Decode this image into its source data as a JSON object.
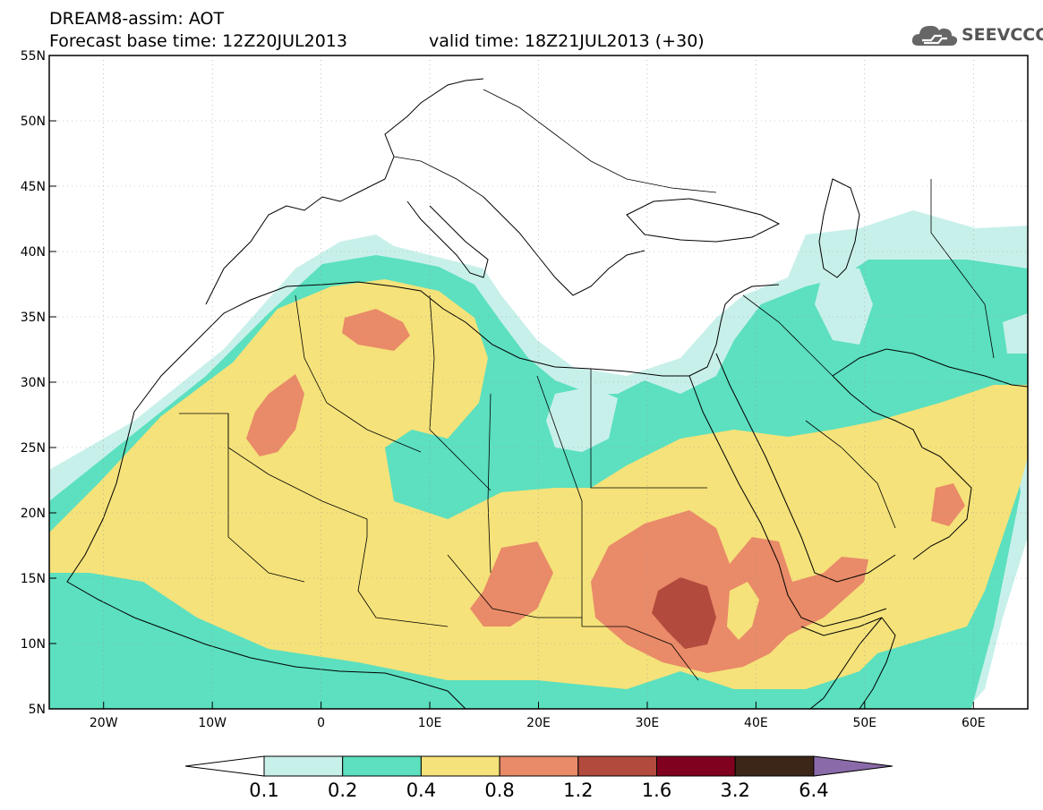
{
  "header": {
    "title": "DREAM8-assim: AOT",
    "base_time": "Forecast base time: 12Z20JUL2013",
    "valid_time": "valid time: 18Z21JUL2013 (+30)"
  },
  "logo": {
    "text": "SEEVCCC",
    "icon": "cloud-icon"
  },
  "map": {
    "lon_range": [
      -25,
      65
    ],
    "lat_range": [
      5,
      55
    ],
    "lon_ticks": [
      {
        "lon": -20,
        "label": "20W"
      },
      {
        "lon": -10,
        "label": "10W"
      },
      {
        "lon": 0,
        "label": "0"
      },
      {
        "lon": 10,
        "label": "10E"
      },
      {
        "lon": 20,
        "label": "20E"
      },
      {
        "lon": 30,
        "label": "30E"
      },
      {
        "lon": 40,
        "label": "40E"
      },
      {
        "lon": 50,
        "label": "50E"
      },
      {
        "lon": 60,
        "label": "60E"
      }
    ],
    "lat_ticks": [
      {
        "lat": 5,
        "label": "5N"
      },
      {
        "lat": 10,
        "label": "10N"
      },
      {
        "lat": 15,
        "label": "15N"
      },
      {
        "lat": 20,
        "label": "20N"
      },
      {
        "lat": 25,
        "label": "25N"
      },
      {
        "lat": 30,
        "label": "30N"
      },
      {
        "lat": 35,
        "label": "35N"
      },
      {
        "lat": 40,
        "label": "40N"
      },
      {
        "lat": 45,
        "label": "45N"
      },
      {
        "lat": 50,
        "label": "50N"
      },
      {
        "lat": 55,
        "label": "55N"
      }
    ],
    "grid": true
  },
  "colorbar": {
    "thresholds": [
      "0.1",
      "0.2",
      "0.4",
      "0.8",
      "1.2",
      "1.6",
      "3.2",
      "6.4"
    ],
    "colors": [
      "#ffffff",
      "#c8f0ea",
      "#5ce0bf",
      "#f5e27a",
      "#e98a68",
      "#b24a3e",
      "#800020",
      "#3c2617",
      "#8a6aa8"
    ]
  }
}
